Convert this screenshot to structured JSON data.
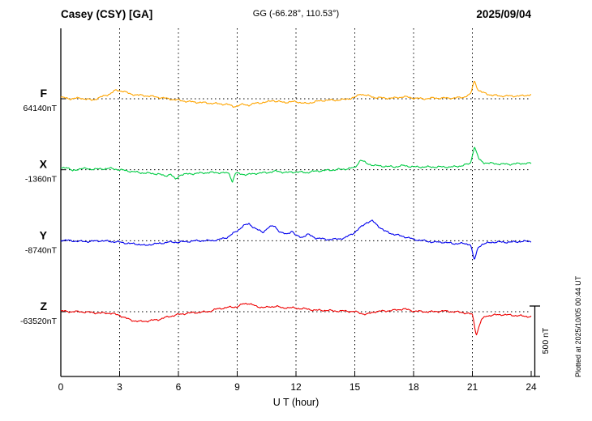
{
  "header": {
    "station": "Casey (CSY)  [GA]",
    "coords": "GG (-66.28°, 110.53°)",
    "date": "2025/09/04"
  },
  "side": {
    "scale_label": "500 nT",
    "plotted_at": "Plotted at 2025/10/05 00:44 UT"
  },
  "chart_data": {
    "type": "line",
    "title": "Casey (CSY) [GA] magnetogram 2025/09/04",
    "xlabel": "U T (hour)",
    "x_range": [
      0,
      24
    ],
    "x_ticks": [
      0,
      3,
      6,
      9,
      12,
      15,
      18,
      21,
      24
    ],
    "grid": "dotted vertical at 3h intervals, dotted horizontal baseline per channel",
    "scale_bar_nT": 500,
    "value_units": "nT deviation from channel baseline",
    "channels": [
      {
        "name": "F",
        "color": "#FFA500",
        "baseline_label": "64140nT",
        "baseline_value": 64140,
        "points": [
          [
            0,
            10
          ],
          [
            0.5,
            0
          ],
          [
            1,
            5
          ],
          [
            1.6,
            -10
          ],
          [
            2,
            10
          ],
          [
            2.5,
            35
          ],
          [
            2.8,
            60
          ],
          [
            3.2,
            55
          ],
          [
            3.5,
            35
          ],
          [
            4,
            25
          ],
          [
            4.5,
            20
          ],
          [
            5,
            10
          ],
          [
            5.5,
            0
          ],
          [
            6,
            -10
          ],
          [
            6.5,
            -20
          ],
          [
            7,
            -25
          ],
          [
            7.5,
            -30
          ],
          [
            8,
            -35
          ],
          [
            8.5,
            -40
          ],
          [
            8.8,
            -55
          ],
          [
            9,
            -50
          ],
          [
            9.3,
            -40
          ],
          [
            9.6,
            -45
          ],
          [
            10,
            -30
          ],
          [
            10.5,
            -25
          ],
          [
            10.8,
            -10
          ],
          [
            11,
            -20
          ],
          [
            11.5,
            -25
          ],
          [
            12,
            -20
          ],
          [
            12.5,
            -35
          ],
          [
            13,
            -20
          ],
          [
            13.5,
            -10
          ],
          [
            14,
            -10
          ],
          [
            14.5,
            -5
          ],
          [
            15,
            10
          ],
          [
            15.3,
            35
          ],
          [
            15.7,
            20
          ],
          [
            16,
            10
          ],
          [
            16.5,
            5
          ],
          [
            17,
            5
          ],
          [
            17.5,
            15
          ],
          [
            18,
            5
          ],
          [
            18.5,
            0
          ],
          [
            19,
            5
          ],
          [
            19.5,
            5
          ],
          [
            20,
            5
          ],
          [
            20.5,
            10
          ],
          [
            20.9,
            30
          ],
          [
            21.1,
            130
          ],
          [
            21.3,
            60
          ],
          [
            21.5,
            45
          ],
          [
            22,
            25
          ],
          [
            22.5,
            20
          ],
          [
            23,
            20
          ],
          [
            23.5,
            20
          ],
          [
            24,
            30
          ]
        ]
      },
      {
        "name": "X",
        "color": "#00CC44",
        "baseline_label": "-1360nT",
        "baseline_value": -1360,
        "points": [
          [
            0,
            10
          ],
          [
            0.3,
            20
          ],
          [
            0.6,
            -10
          ],
          [
            1,
            10
          ],
          [
            1.5,
            5
          ],
          [
            2,
            5
          ],
          [
            2.5,
            10
          ],
          [
            3,
            0
          ],
          [
            3.5,
            -10
          ],
          [
            4,
            -20
          ],
          [
            4.5,
            -25
          ],
          [
            5,
            -30
          ],
          [
            5.3,
            -45
          ],
          [
            5.6,
            -30
          ],
          [
            5.85,
            -70
          ],
          [
            6.1,
            -35
          ],
          [
            6.5,
            -30
          ],
          [
            7,
            -25
          ],
          [
            7.5,
            -20
          ],
          [
            8,
            -20
          ],
          [
            8.6,
            -25
          ],
          [
            8.75,
            -90
          ],
          [
            8.9,
            -25
          ],
          [
            9.2,
            -30
          ],
          [
            9.5,
            -35
          ],
          [
            10,
            -25
          ],
          [
            10.5,
            -20
          ],
          [
            11,
            -10
          ],
          [
            11.5,
            -20
          ],
          [
            12,
            -15
          ],
          [
            12.5,
            -20
          ],
          [
            13,
            -10
          ],
          [
            13.5,
            -5
          ],
          [
            14,
            0
          ],
          [
            14.5,
            5
          ],
          [
            15,
            15
          ],
          [
            15.3,
            70
          ],
          [
            15.6,
            45
          ],
          [
            16,
            30
          ],
          [
            16.5,
            25
          ],
          [
            17,
            20
          ],
          [
            17.5,
            30
          ],
          [
            18,
            20
          ],
          [
            18.5,
            20
          ],
          [
            19,
            20
          ],
          [
            19.5,
            20
          ],
          [
            20,
            20
          ],
          [
            20.5,
            30
          ],
          [
            20.9,
            45
          ],
          [
            21.1,
            165
          ],
          [
            21.35,
            70
          ],
          [
            21.6,
            50
          ],
          [
            22,
            45
          ],
          [
            22.5,
            40
          ],
          [
            23,
            40
          ],
          [
            23.5,
            45
          ],
          [
            24,
            45
          ]
        ]
      },
      {
        "name": "Y",
        "color": "#0000EE",
        "baseline_label": "-8740nT",
        "baseline_value": -8740,
        "points": [
          [
            0,
            5
          ],
          [
            0.5,
            0
          ],
          [
            1,
            -5
          ],
          [
            1.5,
            -5
          ],
          [
            2,
            0
          ],
          [
            2.5,
            -5
          ],
          [
            3,
            -10
          ],
          [
            3.5,
            -20
          ],
          [
            4,
            -25
          ],
          [
            4.3,
            -35
          ],
          [
            4.6,
            -25
          ],
          [
            5,
            -20
          ],
          [
            5.5,
            -10
          ],
          [
            6,
            -10
          ],
          [
            6.5,
            -5
          ],
          [
            7,
            0
          ],
          [
            7.5,
            0
          ],
          [
            8,
            5
          ],
          [
            8.5,
            25
          ],
          [
            9,
            70
          ],
          [
            9.3,
            105
          ],
          [
            9.6,
            120
          ],
          [
            10,
            80
          ],
          [
            10.3,
            60
          ],
          [
            10.6,
            95
          ],
          [
            10.9,
            105
          ],
          [
            11.2,
            60
          ],
          [
            11.5,
            45
          ],
          [
            11.8,
            70
          ],
          [
            12,
            35
          ],
          [
            12.3,
            25
          ],
          [
            12.6,
            45
          ],
          [
            13,
            20
          ],
          [
            13.5,
            10
          ],
          [
            14,
            10
          ],
          [
            14.5,
            20
          ],
          [
            15,
            60
          ],
          [
            15.3,
            95
          ],
          [
            15.6,
            130
          ],
          [
            15.9,
            140
          ],
          [
            16.2,
            105
          ],
          [
            16.5,
            70
          ],
          [
            17,
            45
          ],
          [
            17.5,
            30
          ],
          [
            18,
            10
          ],
          [
            18.5,
            0
          ],
          [
            19,
            -10
          ],
          [
            19.5,
            -10
          ],
          [
            20,
            -20
          ],
          [
            20.5,
            -20
          ],
          [
            20.9,
            -25
          ],
          [
            21.1,
            -140
          ],
          [
            21.3,
            -45
          ],
          [
            21.5,
            -25
          ],
          [
            22,
            -10
          ],
          [
            22.5,
            -10
          ],
          [
            23,
            -10
          ],
          [
            23.5,
            -5
          ],
          [
            24,
            -5
          ]
        ]
      },
      {
        "name": "Z",
        "color": "#EE0000",
        "baseline_label": "-63520nT",
        "baseline_value": -63520,
        "points": [
          [
            0,
            5
          ],
          [
            0.5,
            0
          ],
          [
            1,
            0
          ],
          [
            1.5,
            -5
          ],
          [
            2,
            -10
          ],
          [
            2.5,
            -10
          ],
          [
            3,
            -25
          ],
          [
            3.3,
            -45
          ],
          [
            3.6,
            -60
          ],
          [
            4,
            -70
          ],
          [
            4.5,
            -65
          ],
          [
            5,
            -55
          ],
          [
            5.5,
            -35
          ],
          [
            6,
            -20
          ],
          [
            6.5,
            -10
          ],
          [
            7,
            -5
          ],
          [
            7.5,
            0
          ],
          [
            8,
            20
          ],
          [
            8.5,
            30
          ],
          [
            9,
            35
          ],
          [
            9.3,
            55
          ],
          [
            9.6,
            60
          ],
          [
            10,
            35
          ],
          [
            10.5,
            30
          ],
          [
            11,
            40
          ],
          [
            11.3,
            25
          ],
          [
            11.5,
            30
          ],
          [
            12,
            25
          ],
          [
            12.5,
            20
          ],
          [
            13,
            10
          ],
          [
            13.5,
            10
          ],
          [
            14,
            5
          ],
          [
            14.5,
            5
          ],
          [
            15,
            0
          ],
          [
            15.3,
            -10
          ],
          [
            15.6,
            -20
          ],
          [
            16,
            0
          ],
          [
            16.5,
            5
          ],
          [
            17,
            10
          ],
          [
            17.5,
            20
          ],
          [
            18,
            5
          ],
          [
            18.5,
            0
          ],
          [
            19,
            0
          ],
          [
            19.5,
            5
          ],
          [
            20,
            0
          ],
          [
            20.5,
            -5
          ],
          [
            21,
            -20
          ],
          [
            21.2,
            -165
          ],
          [
            21.45,
            -60
          ],
          [
            21.7,
            -30
          ],
          [
            22,
            -25
          ],
          [
            22.5,
            -20
          ],
          [
            23,
            -25
          ],
          [
            23.5,
            -30
          ],
          [
            24,
            -35
          ]
        ]
      }
    ]
  }
}
